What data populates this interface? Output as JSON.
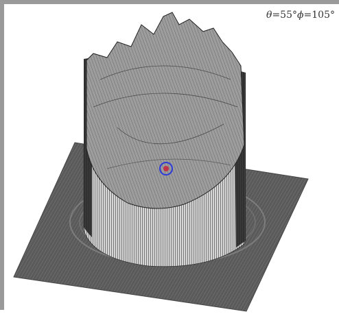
{
  "viewer": {
    "theta_symbol": "θ",
    "theta_value": "=55°",
    "phi_symbol": "ϕ",
    "phi_value": "=105°"
  },
  "colors": {
    "frame_border": "#9a9a9a",
    "background": "#ffffff",
    "plane_fill": "#595959",
    "mesh_light": "#b8b8b8",
    "mesh_dark": "#2a2a2a",
    "marker_outer": "#2f3bd6",
    "marker_inner": "#c2334a"
  }
}
